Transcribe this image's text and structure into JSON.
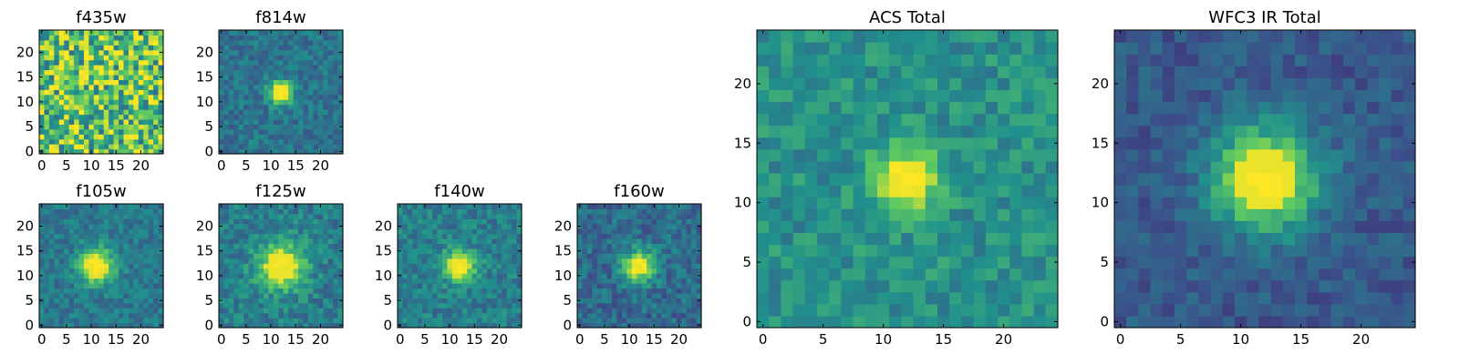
{
  "figure": {
    "background": "#ffffff",
    "colormap": "viridis",
    "colormap_stops": [
      "#440154",
      "#3b528b",
      "#21918c",
      "#5ec962",
      "#fde725"
    ]
  },
  "chart_data": [
    {
      "type": "heatmap",
      "id": "f435w",
      "title": "f435w",
      "grid_size": 25,
      "xlim": [
        -0.5,
        24.5
      ],
      "ylim": [
        -0.5,
        24.5
      ],
      "xticks": [
        0,
        5,
        10,
        15,
        20
      ],
      "yticks": [
        0,
        5,
        10,
        15,
        20
      ],
      "description_of_values": "noise field, no central source",
      "source": {
        "x": 12,
        "y": 12,
        "amplitude": 0.0,
        "sigma": 3.0
      },
      "noise": 0.35,
      "baseline": 0.72
    },
    {
      "type": "heatmap",
      "id": "f814w",
      "title": "f814w",
      "grid_size": 25,
      "xlim": [
        -0.5,
        24.5
      ],
      "ylim": [
        -0.5,
        24.5
      ],
      "xticks": [
        0,
        5,
        10,
        15,
        20
      ],
      "yticks": [
        0,
        5,
        10,
        15,
        20
      ],
      "source": {
        "x": 12,
        "y": 12,
        "amplitude": 0.75,
        "sigma": 1.6
      },
      "noise": 0.12,
      "baseline": 0.38
    },
    {
      "type": "heatmap",
      "id": "f105w",
      "title": "f105w",
      "grid_size": 25,
      "xlim": [
        -0.5,
        24.5
      ],
      "ylim": [
        -0.5,
        24.5
      ],
      "xticks": [
        0,
        5,
        10,
        15,
        20
      ],
      "yticks": [
        0,
        5,
        10,
        15,
        20
      ],
      "source": {
        "x": 11,
        "y": 12,
        "amplitude": 0.7,
        "sigma": 2.4
      },
      "noise": 0.11,
      "baseline": 0.4
    },
    {
      "type": "heatmap",
      "id": "f125w",
      "title": "f125w",
      "grid_size": 25,
      "xlim": [
        -0.5,
        24.5
      ],
      "ylim": [
        -0.5,
        24.5
      ],
      "xticks": [
        0,
        5,
        10,
        15,
        20
      ],
      "yticks": [
        0,
        5,
        10,
        15,
        20
      ],
      "source": {
        "x": 12,
        "y": 12,
        "amplitude": 0.55,
        "sigma": 3.4
      },
      "noise": 0.13,
      "baseline": 0.42
    },
    {
      "type": "heatmap",
      "id": "f140w",
      "title": "f140w",
      "grid_size": 25,
      "xlim": [
        -0.5,
        24.5
      ],
      "ylim": [
        -0.5,
        24.5
      ],
      "xticks": [
        0,
        5,
        10,
        15,
        20
      ],
      "yticks": [
        0,
        5,
        10,
        15,
        20
      ],
      "source": {
        "x": 12,
        "y": 12,
        "amplitude": 0.65,
        "sigma": 2.2
      },
      "noise": 0.12,
      "baseline": 0.42
    },
    {
      "type": "heatmap",
      "id": "f160w",
      "title": "f160w",
      "grid_size": 25,
      "xlim": [
        -0.5,
        24.5
      ],
      "ylim": [
        -0.5,
        24.5
      ],
      "xticks": [
        0,
        5,
        10,
        15,
        20
      ],
      "yticks": [
        0,
        5,
        10,
        15,
        20
      ],
      "source": {
        "x": 12,
        "y": 12,
        "amplitude": 0.7,
        "sigma": 2.2
      },
      "noise": 0.13,
      "baseline": 0.35
    },
    {
      "type": "heatmap",
      "id": "acs-total",
      "title": "ACS Total",
      "grid_size": 25,
      "xlim": [
        -0.5,
        24.5
      ],
      "ylim": [
        -0.5,
        24.5
      ],
      "xticks": [
        0,
        5,
        10,
        15,
        20
      ],
      "yticks": [
        0,
        5,
        10,
        15,
        20
      ],
      "source": {
        "x": 12,
        "y": 12,
        "amplitude": 0.6,
        "sigma": 1.8
      },
      "noise": 0.12,
      "baseline": 0.5
    },
    {
      "type": "heatmap",
      "id": "wfc3-ir-total",
      "title": "WFC3 IR Total",
      "grid_size": 25,
      "xlim": [
        -0.5,
        24.5
      ],
      "ylim": [
        -0.5,
        24.5
      ],
      "xticks": [
        0,
        5,
        10,
        15,
        20
      ],
      "yticks": [
        0,
        5,
        10,
        15,
        20
      ],
      "source": {
        "x": 12,
        "y": 12,
        "amplitude": 0.75,
        "sigma": 3.0
      },
      "noise": 0.09,
      "baseline": 0.28
    }
  ]
}
